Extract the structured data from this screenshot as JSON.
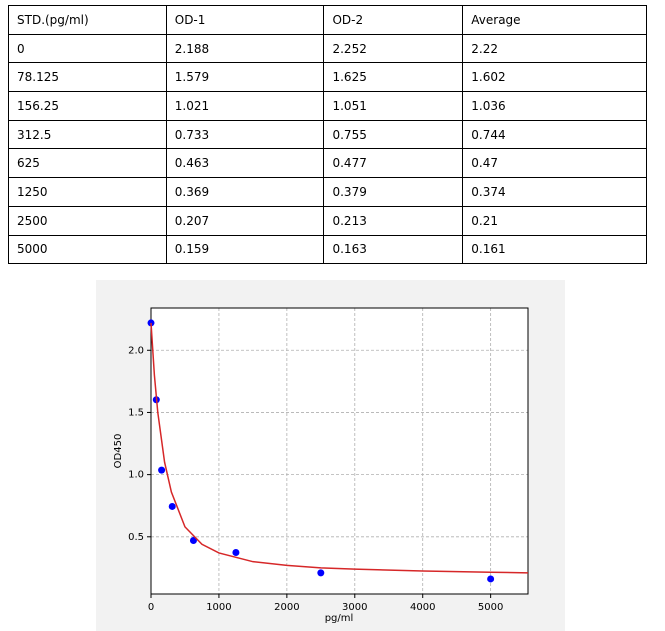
{
  "table": {
    "header": [
      "STD.(pg/ml)",
      "OD-1",
      "OD-2",
      "Average"
    ],
    "rows": [
      [
        "0",
        "2.188",
        "2.252",
        "2.22"
      ],
      [
        "78.125",
        "1.579",
        "1.625",
        "1.602"
      ],
      [
        "156.25",
        "1.021",
        "1.051",
        "1.036"
      ],
      [
        "312.5",
        "0.733",
        "0.755",
        "0.744"
      ],
      [
        "625",
        "0.463",
        "0.477",
        "0.47"
      ],
      [
        "1250",
        "0.369",
        "0.379",
        "0.374"
      ],
      [
        "2500",
        "0.207",
        "0.213",
        "0.21"
      ],
      [
        "5000",
        "0.159",
        "0.163",
        "0.161"
      ]
    ]
  },
  "chart_data": {
    "type": "scatter",
    "xlabel": "pg/ml",
    "ylabel": "OD450",
    "xlim": [
      0,
      5550
    ],
    "ylim": [
      0.04,
      2.34
    ],
    "xticks": [
      0,
      1000,
      2000,
      3000,
      4000,
      5000
    ],
    "yticks": [
      0.5,
      {
        "value": 1,
        "label": "1.0"
      },
      1.5,
      {
        "value": 2,
        "label": "2.0"
      }
    ],
    "grid": true,
    "series": [
      {
        "type": "scatter",
        "color": "#0000ff",
        "x": [
          0,
          78.125,
          156.25,
          312.5,
          625,
          1250,
          2500,
          5000
        ],
        "values": [
          2.22,
          1.602,
          1.036,
          0.744,
          0.47,
          0.374,
          0.21,
          0.161
        ]
      },
      {
        "type": "line",
        "color": "#d62728",
        "x": [
          0,
          50,
          100,
          200,
          300,
          500,
          750,
          1000,
          1500,
          2000,
          2500,
          3000,
          4000,
          5000,
          5550
        ],
        "values": [
          2.22,
          1.8,
          1.5,
          1.1,
          0.86,
          0.58,
          0.44,
          0.37,
          0.3,
          0.27,
          0.25,
          0.24,
          0.225,
          0.215,
          0.21
        ]
      }
    ]
  }
}
